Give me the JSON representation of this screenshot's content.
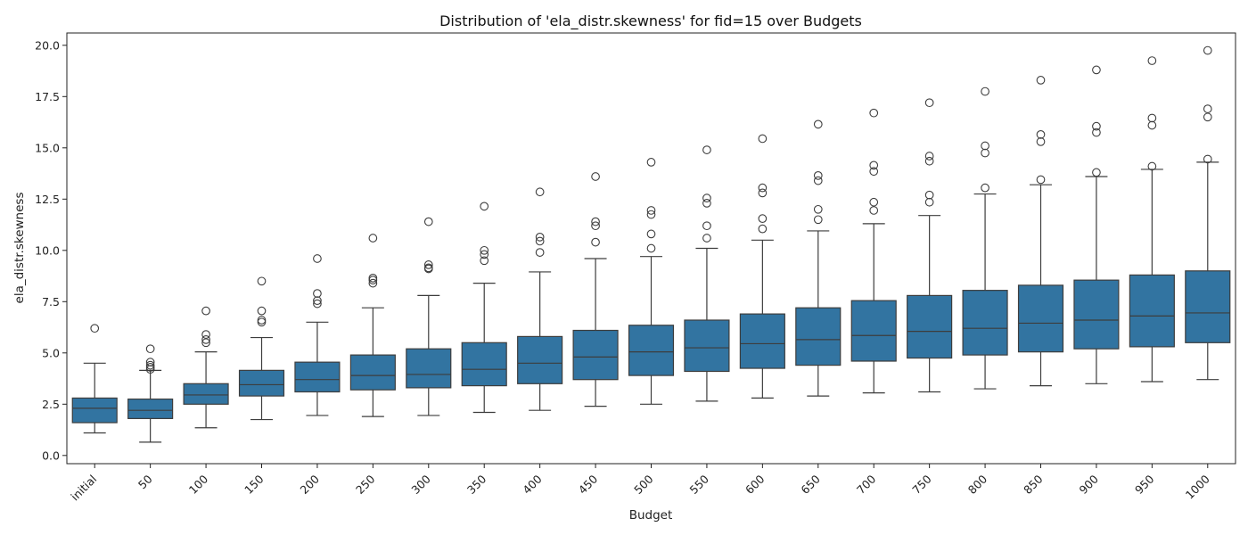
{
  "chart_data": {
    "type": "box",
    "title": "Distribution of 'ela_distr.skewness' for fid=15 over Budgets",
    "xlabel": "Budget",
    "ylabel": "ela_distr.skewness",
    "ylim": [
      -0.4,
      20.6
    ],
    "yticks": [
      "0.0",
      "2.5",
      "5.0",
      "7.5",
      "10.0",
      "12.5",
      "15.0",
      "17.5",
      "20.0"
    ],
    "grid": false,
    "legend": "none",
    "box_color": "#3274a1",
    "edge_color": "#3d3d3d",
    "categories": [
      "initial",
      "50",
      "100",
      "150",
      "200",
      "250",
      "300",
      "350",
      "400",
      "450",
      "500",
      "550",
      "600",
      "650",
      "700",
      "750",
      "800",
      "850",
      "900",
      "950",
      "1000"
    ],
    "boxes": [
      {
        "label": "initial",
        "whislo": 1.1,
        "q1": 1.6,
        "med": 2.3,
        "q3": 2.8,
        "whishi": 4.5,
        "fliers": [
          6.2
        ]
      },
      {
        "label": "50",
        "whislo": 0.65,
        "q1": 1.8,
        "med": 2.2,
        "q3": 2.75,
        "whishi": 4.15,
        "fliers": [
          5.2,
          4.55,
          4.4,
          4.3,
          4.2
        ]
      },
      {
        "label": "100",
        "whislo": 1.35,
        "q1": 2.5,
        "med": 2.95,
        "q3": 3.5,
        "whishi": 5.05,
        "fliers": [
          7.05,
          5.9,
          5.65,
          5.5
        ]
      },
      {
        "label": "150",
        "whislo": 1.75,
        "q1": 2.9,
        "med": 3.45,
        "q3": 4.15,
        "whishi": 5.75,
        "fliers": [
          8.5,
          7.05,
          6.6,
          6.5
        ]
      },
      {
        "label": "200",
        "whislo": 1.95,
        "q1": 3.1,
        "med": 3.7,
        "q3": 4.55,
        "whishi": 6.5,
        "fliers": [
          9.6,
          7.9,
          7.55,
          7.4
        ]
      },
      {
        "label": "250",
        "whislo": 1.9,
        "q1": 3.2,
        "med": 3.9,
        "q3": 4.9,
        "whishi": 7.2,
        "fliers": [
          10.6,
          8.65,
          8.55,
          8.4
        ]
      },
      {
        "label": "300",
        "whislo": 1.95,
        "q1": 3.3,
        "med": 3.95,
        "q3": 5.2,
        "whishi": 7.8,
        "fliers": [
          11.4,
          9.3,
          9.15,
          9.1
        ]
      },
      {
        "label": "350",
        "whislo": 2.1,
        "q1": 3.4,
        "med": 4.2,
        "q3": 5.5,
        "whishi": 8.4,
        "fliers": [
          12.15,
          10.0,
          9.8,
          9.5
        ]
      },
      {
        "label": "400",
        "whislo": 2.2,
        "q1": 3.5,
        "med": 4.5,
        "q3": 5.8,
        "whishi": 8.95,
        "fliers": [
          12.85,
          10.65,
          10.45,
          9.9
        ]
      },
      {
        "label": "450",
        "whislo": 2.4,
        "q1": 3.7,
        "med": 4.8,
        "q3": 6.1,
        "whishi": 9.6,
        "fliers": [
          13.6,
          11.4,
          11.2,
          10.4
        ]
      },
      {
        "label": "500",
        "whislo": 2.5,
        "q1": 3.9,
        "med": 5.05,
        "q3": 6.35,
        "whishi": 9.7,
        "fliers": [
          14.3,
          11.95,
          11.75,
          10.8,
          10.1
        ]
      },
      {
        "label": "550",
        "whislo": 2.65,
        "q1": 4.1,
        "med": 5.25,
        "q3": 6.6,
        "whishi": 10.1,
        "fliers": [
          14.9,
          12.55,
          12.3,
          11.2,
          10.6
        ]
      },
      {
        "label": "600",
        "whislo": 2.8,
        "q1": 4.25,
        "med": 5.45,
        "q3": 6.9,
        "whishi": 10.5,
        "fliers": [
          15.45,
          13.05,
          12.8,
          11.55,
          11.05
        ]
      },
      {
        "label": "650",
        "whislo": 2.9,
        "q1": 4.4,
        "med": 5.65,
        "q3": 7.2,
        "whishi": 10.95,
        "fliers": [
          16.15,
          13.65,
          13.4,
          12.0,
          11.5
        ]
      },
      {
        "label": "700",
        "whislo": 3.05,
        "q1": 4.6,
        "med": 5.85,
        "q3": 7.55,
        "whishi": 11.3,
        "fliers": [
          16.7,
          14.15,
          13.85,
          12.35,
          11.95
        ]
      },
      {
        "label": "750",
        "whislo": 3.1,
        "q1": 4.75,
        "med": 6.05,
        "q3": 7.8,
        "whishi": 11.7,
        "fliers": [
          17.2,
          14.6,
          14.35,
          12.7,
          12.35
        ]
      },
      {
        "label": "800",
        "whislo": 3.25,
        "q1": 4.9,
        "med": 6.2,
        "q3": 8.05,
        "whishi": 12.75,
        "fliers": [
          17.75,
          15.1,
          14.75,
          13.05
        ]
      },
      {
        "label": "850",
        "whislo": 3.4,
        "q1": 5.05,
        "med": 6.45,
        "q3": 8.3,
        "whishi": 13.2,
        "fliers": [
          18.3,
          15.65,
          15.3,
          13.45
        ]
      },
      {
        "label": "900",
        "whislo": 3.5,
        "q1": 5.2,
        "med": 6.6,
        "q3": 8.55,
        "whishi": 13.6,
        "fliers": [
          18.8,
          16.05,
          15.75,
          13.8
        ]
      },
      {
        "label": "950",
        "whislo": 3.6,
        "q1": 5.3,
        "med": 6.8,
        "q3": 8.8,
        "whishi": 13.95,
        "fliers": [
          19.25,
          16.45,
          16.1,
          14.1
        ]
      },
      {
        "label": "1000",
        "whislo": 3.7,
        "q1": 5.5,
        "med": 6.95,
        "q3": 9.0,
        "whishi": 14.3,
        "fliers": [
          19.75,
          16.9,
          16.5,
          14.45
        ]
      }
    ]
  }
}
